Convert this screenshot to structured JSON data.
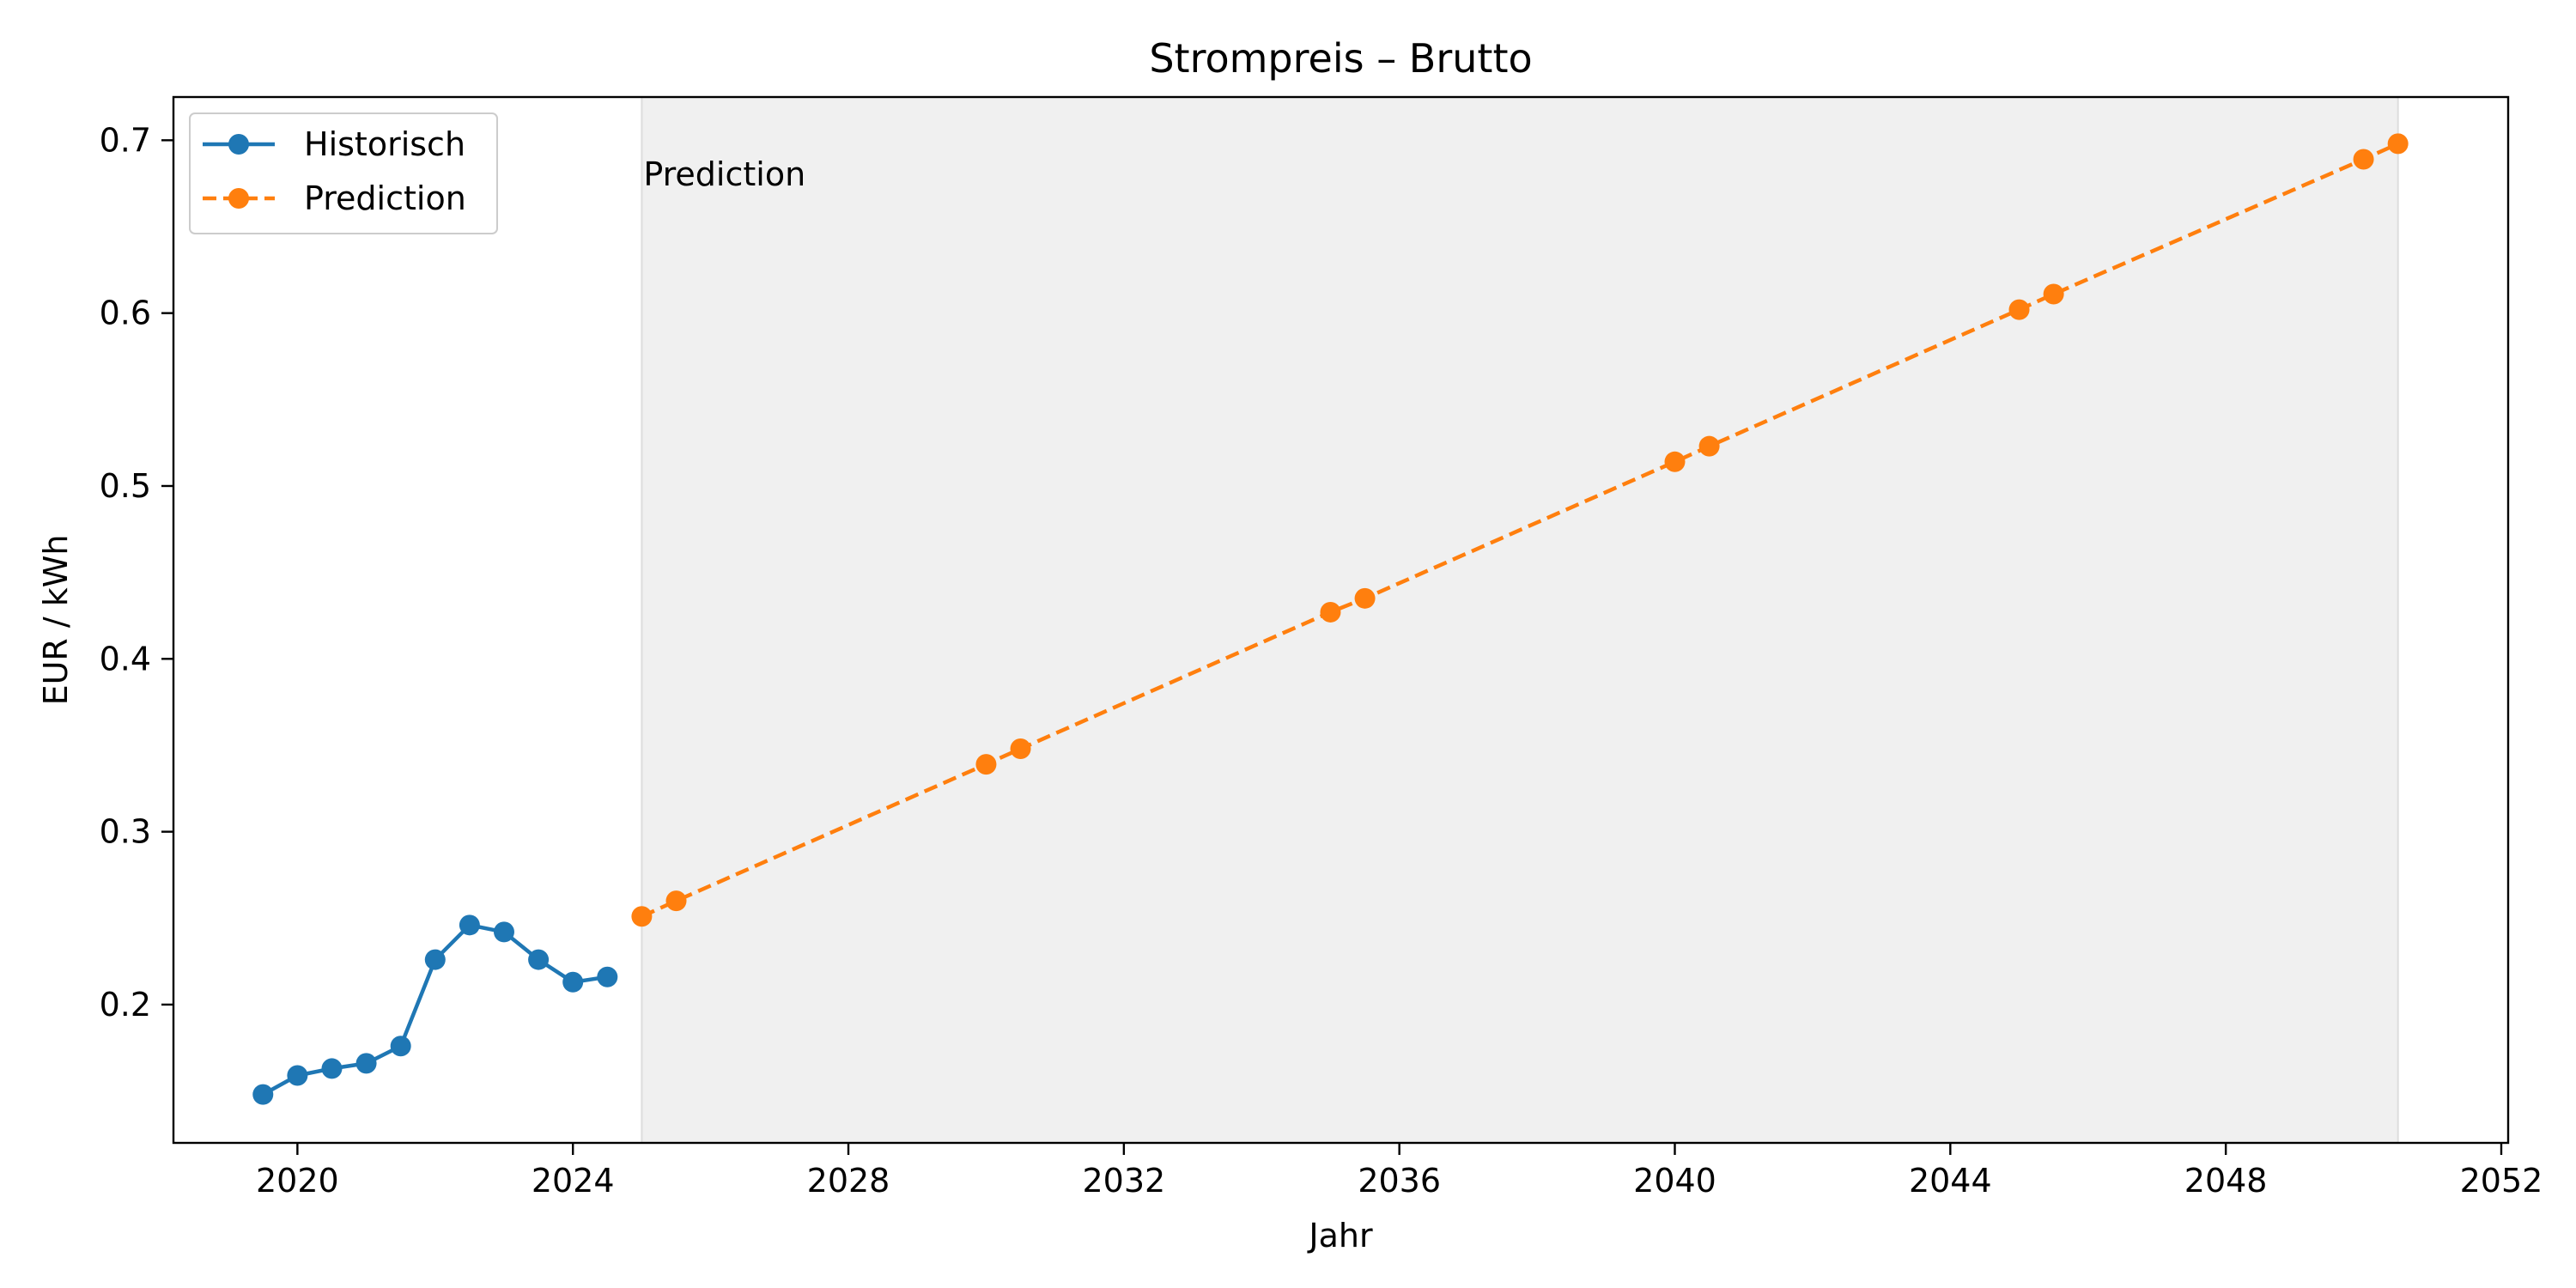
{
  "chart_data": {
    "type": "line",
    "title": "Strompreis – Brutto",
    "xlabel": "Jahr",
    "ylabel": "EUR / kWh",
    "xlim": [
      2018.2,
      2052.1
    ],
    "ylim": [
      0.12,
      0.725
    ],
    "xticks": [
      2020,
      2024,
      2028,
      2032,
      2036,
      2040,
      2044,
      2048,
      2052
    ],
    "yticks": [
      0.2,
      0.3,
      0.4,
      0.5,
      0.6,
      0.7
    ],
    "xtick_labels": [
      "2020",
      "2024",
      "2028",
      "2032",
      "2036",
      "2040",
      "2044",
      "2048",
      "2052"
    ],
    "ytick_labels": [
      "0.2",
      "0.3",
      "0.4",
      "0.5",
      "0.6",
      "0.7"
    ],
    "grid": false,
    "legend_position": "top-left",
    "shaded_region": {
      "x_start": 2025.0,
      "x_end": 2050.5,
      "color": "#f0f0f0",
      "label": "Prediction"
    },
    "series": [
      {
        "name": "Historisch",
        "color": "#1f77b4",
        "style": "solid",
        "marker": "circle",
        "x": [
          2019.5,
          2020.0,
          2020.5,
          2021.0,
          2021.5,
          2022.0,
          2022.5,
          2023.0,
          2023.5,
          2024.0,
          2024.5
        ],
        "y": [
          0.148,
          0.159,
          0.163,
          0.166,
          0.176,
          0.226,
          0.246,
          0.242,
          0.226,
          0.213,
          0.216
        ]
      },
      {
        "name": "Prediction",
        "color": "#ff7f0e",
        "style": "dashed",
        "marker": "circle",
        "x": [
          2025.0,
          2025.5,
          2030.0,
          2030.5,
          2035.0,
          2035.5,
          2040.0,
          2040.5,
          2045.0,
          2045.5,
          2050.0,
          2050.5
        ],
        "y": [
          0.251,
          0.26,
          0.339,
          0.348,
          0.427,
          0.435,
          0.514,
          0.523,
          0.602,
          0.611,
          0.689,
          0.698
        ]
      }
    ]
  }
}
